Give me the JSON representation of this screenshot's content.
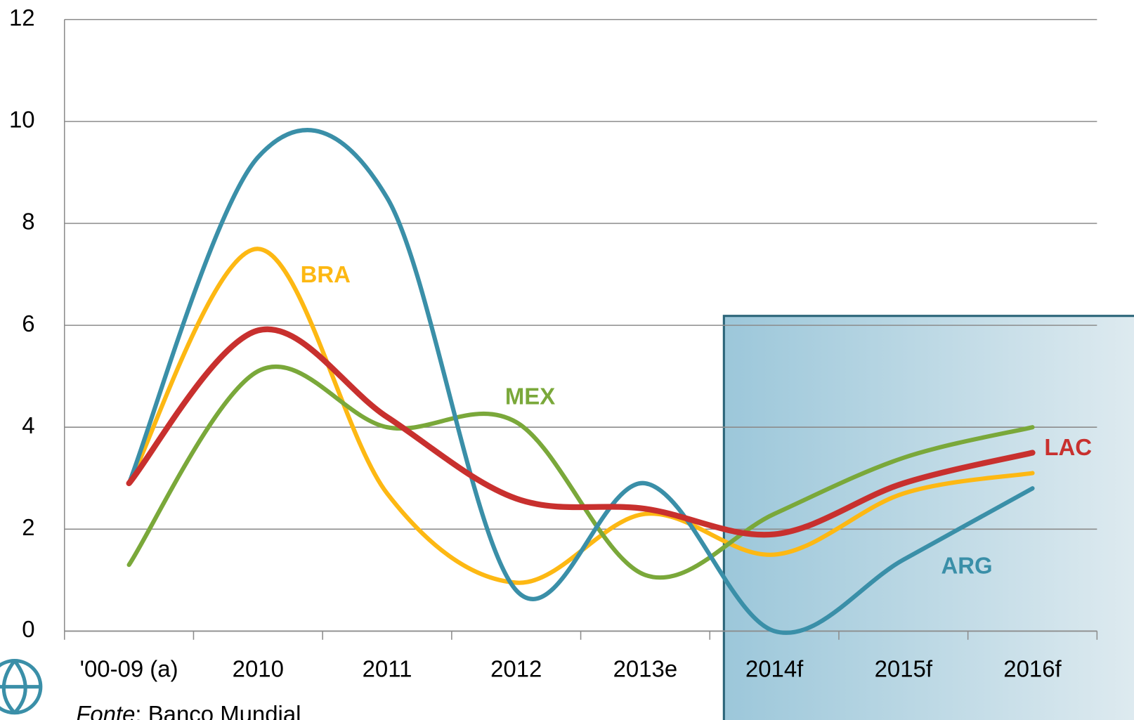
{
  "chart_data": {
    "type": "line",
    "categories": [
      "'00-09 (a)",
      "2010",
      "2011",
      "2012",
      "2013e",
      "2014f",
      "2015f",
      "2016f"
    ],
    "series": [
      {
        "name": "BRA",
        "color": "#fdb813",
        "values": [
          2.9,
          7.5,
          2.7,
          0.95,
          2.3,
          1.5,
          2.7,
          3.1
        ]
      },
      {
        "name": "MEX",
        "color": "#7aa83a",
        "values": [
          1.3,
          5.1,
          4.0,
          4.1,
          1.1,
          2.3,
          3.4,
          4.0
        ]
      },
      {
        "name": "ARG",
        "color": "#3a8fa8",
        "values": [
          2.9,
          9.3,
          8.5,
          0.8,
          2.9,
          0.0,
          1.4,
          2.8
        ]
      },
      {
        "name": "LAC",
        "color": "#c8302e",
        "values": [
          2.9,
          5.9,
          4.2,
          2.6,
          2.4,
          1.9,
          2.9,
          3.5
        ]
      }
    ],
    "ylim": [
      0,
      12
    ],
    "yticks": [
      0,
      2,
      4,
      6,
      8,
      10,
      12
    ],
    "grid": true,
    "source_label": "Fonte",
    "source": ": Banco Mundial"
  }
}
